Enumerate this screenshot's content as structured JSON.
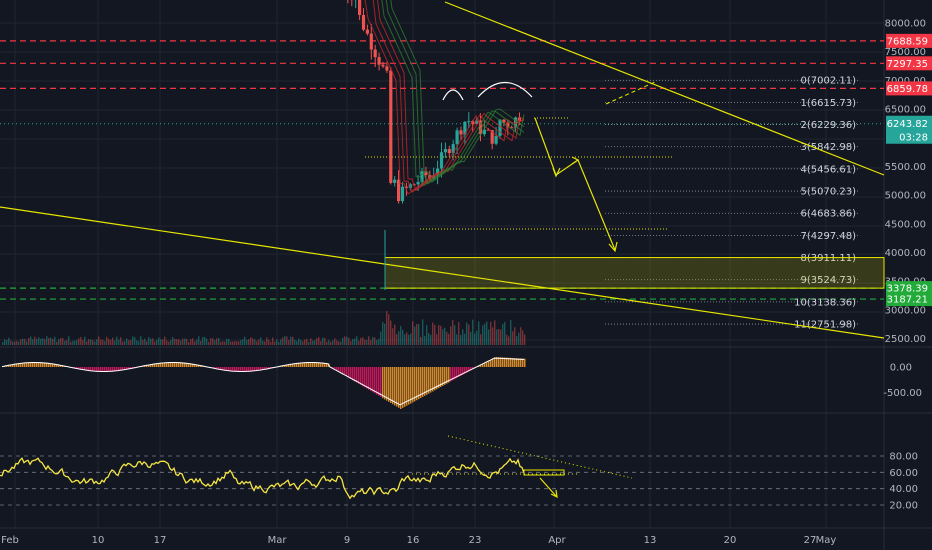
{
  "colors": {
    "background": "#131722",
    "grid": "#1f2430",
    "candle_up": "#26a69a",
    "candle_down": "#ef5350",
    "annotation": "#e6e600",
    "resistance": "#f23645",
    "support": "#22ab3a",
    "price_tag": "#26a69a",
    "rsi": "#f5e642",
    "macd_line": "#ffffff",
    "hist_up": "#d48a2a",
    "hist_down": "#c2185b"
  },
  "chart_data": {
    "type": "candlestick",
    "price_panel": {
      "y_ticks": [
        "8000.00",
        "7500.00",
        "7000.00",
        "6500.00",
        "5500.00",
        "5000.00",
        "4500.00",
        "4000.00",
        "3500.00",
        "3000.00",
        "2500.00"
      ],
      "resistance_tags": [
        "7688.59",
        "7297.35",
        "6859.78"
      ],
      "support_tags": [
        "3378.39",
        "3187.21"
      ],
      "current_price": "6243.82",
      "countdown": "03:28",
      "fib_levels": [
        "0(7002.11)",
        "1(6615.73)",
        "2(6229.36)",
        "3(5842.98)",
        "4(5456.61)",
        "5(5070.23)",
        "6(4683.86)",
        "7(4297.48)",
        "8(3911.11)",
        "9(3524.73)",
        "10(3138.36)",
        "11(2751.98)"
      ]
    },
    "macd_panel": {
      "y_ticks": [
        "0.00",
        "-500.00"
      ]
    },
    "rsi_panel": {
      "y_ticks": [
        "80.00",
        "60.00",
        "40.00",
        "20.00"
      ]
    },
    "x_labels": [
      "Feb",
      "10",
      "17",
      "Mar",
      "9",
      "16",
      "23",
      "Apr",
      "13",
      "20",
      "27",
      "May"
    ]
  }
}
